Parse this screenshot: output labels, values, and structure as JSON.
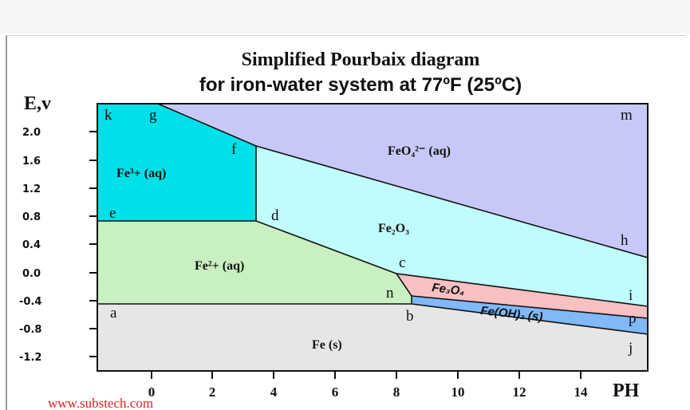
{
  "diagram": {
    "title_line1": "Simplified Pourbaix diagram",
    "title_line2": "for iron-water system at 77ºF (25ºC)",
    "y_axis_label": "E,v",
    "x_axis_label": "PH",
    "y_ticks": [
      "2.0",
      "1.6",
      "1.2",
      "0.8",
      "0.4",
      "0.0",
      "-0.4",
      "-0.8",
      "-1.2"
    ],
    "x_ticks": [
      "0",
      "2",
      "4",
      "6",
      "8",
      "10",
      "12",
      "14"
    ],
    "points": {
      "k": "k",
      "g": "g",
      "m": "m",
      "f": "f",
      "e": "e",
      "d": "d",
      "h": "h",
      "c": "c",
      "n": "n",
      "i": "i",
      "a": "a",
      "b": "b",
      "p": "p",
      "j": "j"
    },
    "regions": {
      "fe3": "Fe³+ (aq)",
      "feo4": "FeO₄²⁻ (aq)",
      "fe2o3": "Fe₂O₃",
      "fe2": "Fe²+ (aq)",
      "fe3o4": "Fe₃O₄",
      "feoh2": "Fe(OH)₂ (s)",
      "fe": "Fe (s)"
    },
    "colors": {
      "fe3": "#00e0e8",
      "feo4": "#c8c8f8",
      "fe2o3": "#c0fcfc",
      "fe2": "#c8f0c0",
      "fe3o4": "#f8c0c0",
      "feoh2": "#80b8f8",
      "fe": "#e6e6e6"
    },
    "source": "www.substech.com"
  }
}
